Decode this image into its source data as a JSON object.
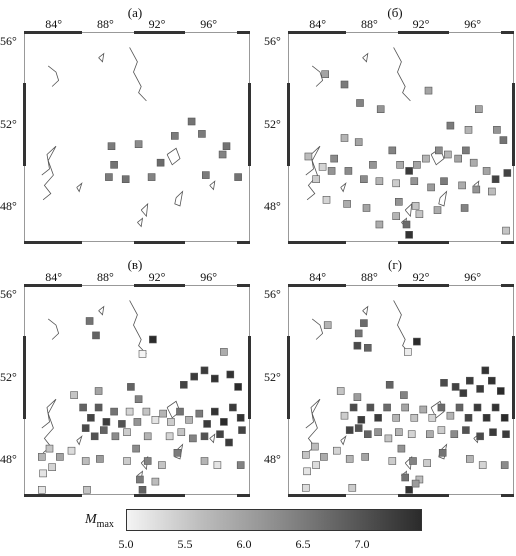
{
  "panels": [
    {
      "label": "(а)"
    },
    {
      "label": "(б)"
    },
    {
      "label": "(в)"
    },
    {
      "label": "(г)"
    }
  ],
  "lon_ticks": [
    "84°",
    "88°",
    "92°",
    "96°"
  ],
  "lat_ticks": [
    "56°",
    "52°",
    "48°"
  ],
  "colorbar": {
    "title": "M",
    "title_sub": "max",
    "ticks": [
      "5.0",
      "5.5",
      "6.0",
      "6.5",
      "7.0"
    ],
    "range": [
      5.0,
      7.5
    ]
  },
  "colors": {
    "low": "#f4f4f4",
    "high": "#2b2b2b",
    "outline": "#555555"
  },
  "map_data": {
    "lon_range": [
      81.5,
      99.0
    ],
    "lat_range": [
      46.3,
      56.5
    ],
    "cells": [
      [
        [
          88.2,
          51.0,
          6.5
        ],
        [
          88.4,
          50.1,
          6.6
        ],
        [
          90.3,
          51.1,
          6.3
        ],
        [
          92.0,
          50.2,
          6.7
        ],
        [
          93.1,
          51.5,
          6.5
        ],
        [
          94.4,
          52.2,
          6.6
        ],
        [
          95.2,
          51.6,
          6.5
        ],
        [
          97.1,
          51.0,
          6.6
        ],
        [
          96.8,
          50.6,
          6.4
        ],
        [
          88.0,
          49.5,
          6.5
        ],
        [
          89.3,
          49.4,
          6.6
        ],
        [
          91.3,
          49.5,
          6.4
        ],
        [
          95.5,
          49.6,
          6.5
        ],
        [
          98.0,
          49.5,
          6.6
        ]
      ],
      [
        [
          84.3,
          54.5,
          6.0
        ],
        [
          85.8,
          54.0,
          6.5
        ],
        [
          87.0,
          53.1,
          6.4
        ],
        [
          88.6,
          52.8,
          6.2
        ],
        [
          92.3,
          53.7,
          6.0
        ],
        [
          94.0,
          52.0,
          6.5
        ],
        [
          95.4,
          51.8,
          5.8
        ],
        [
          96.2,
          52.8,
          6.0
        ],
        [
          97.6,
          51.8,
          6.2
        ],
        [
          98.1,
          51.3,
          6.6
        ],
        [
          83.0,
          50.5,
          5.7
        ],
        [
          84.1,
          50.0,
          5.4
        ],
        [
          85.0,
          50.4,
          6.3
        ],
        [
          85.8,
          51.4,
          5.8
        ],
        [
          86.9,
          51.2,
          6.0
        ],
        [
          88.0,
          50.1,
          6.2
        ],
        [
          89.5,
          50.8,
          6.4
        ],
        [
          90.1,
          50.1,
          5.9
        ],
        [
          90.8,
          49.8,
          7.3
        ],
        [
          91.4,
          50.1,
          6.0
        ],
        [
          92.1,
          50.4,
          5.8
        ],
        [
          93.1,
          50.8,
          6.3
        ],
        [
          93.8,
          50.6,
          5.8
        ],
        [
          94.6,
          50.4,
          6.0
        ],
        [
          95.2,
          50.8,
          6.5
        ],
        [
          95.8,
          50.2,
          5.9
        ],
        [
          96.8,
          49.8,
          6.0
        ],
        [
          97.5,
          49.4,
          7.2
        ],
        [
          98.4,
          49.7,
          7.2
        ],
        [
          83.6,
          49.4,
          5.5
        ],
        [
          84.8,
          49.8,
          6.2
        ],
        [
          86.1,
          49.8,
          6.3
        ],
        [
          87.3,
          49.4,
          6.3
        ],
        [
          88.5,
          49.3,
          5.8
        ],
        [
          89.8,
          49.2,
          5.5
        ],
        [
          91.2,
          49.3,
          6.2
        ],
        [
          92.5,
          49.0,
          6.1
        ],
        [
          93.5,
          49.3,
          6.5
        ],
        [
          94.9,
          49.1,
          5.9
        ],
        [
          96.0,
          48.9,
          6.2
        ],
        [
          97.2,
          48.8,
          5.7
        ],
        [
          84.4,
          48.4,
          5.4
        ],
        [
          86.0,
          48.2,
          5.9
        ],
        [
          87.5,
          48.0,
          6.0
        ],
        [
          90.0,
          48.3,
          6.2
        ],
        [
          91.3,
          48.1,
          5.6
        ],
        [
          93.0,
          47.9,
          5.9
        ],
        [
          95.1,
          48.0,
          6.4
        ],
        [
          89.8,
          47.6,
          5.8
        ],
        [
          90.6,
          47.2,
          6.7
        ],
        [
          91.6,
          47.7,
          5.6
        ],
        [
          88.5,
          47.2,
          5.9
        ],
        [
          90.8,
          46.7,
          7.4
        ],
        [
          98.3,
          46.9,
          5.6
        ]
      ],
      [
        [
          86.5,
          54.8,
          6.6
        ],
        [
          87.0,
          54.1,
          6.8
        ],
        [
          90.6,
          53.2,
          5.0
        ],
        [
          91.4,
          53.9,
          7.5
        ],
        [
          96.9,
          53.3,
          5.9
        ],
        [
          85.3,
          51.2,
          5.6
        ],
        [
          87.2,
          51.4,
          6.0
        ],
        [
          89.7,
          51.6,
          6.8
        ],
        [
          90.3,
          51.0,
          6.4
        ],
        [
          94.6,
          52.1,
          7.3
        ],
        [
          95.4,
          52.4,
          7.3
        ],
        [
          96.2,
          52.0,
          7.4
        ],
        [
          97.4,
          52.2,
          7.4
        ],
        [
          98.0,
          51.6,
          7.5
        ],
        [
          93.8,
          51.7,
          7.2
        ],
        [
          86.0,
          50.6,
          6.8
        ],
        [
          86.6,
          50.1,
          7.2
        ],
        [
          87.2,
          50.6,
          6.9
        ],
        [
          87.8,
          49.9,
          7.3
        ],
        [
          88.4,
          50.4,
          6.6
        ],
        [
          89.0,
          49.8,
          7.0
        ],
        [
          89.6,
          50.4,
          5.4
        ],
        [
          90.2,
          49.9,
          6.2
        ],
        [
          90.9,
          50.4,
          5.6
        ],
        [
          91.6,
          50.0,
          5.2
        ],
        [
          92.2,
          50.3,
          5.8
        ],
        [
          92.8,
          49.9,
          5.5
        ],
        [
          93.5,
          50.4,
          6.6
        ],
        [
          94.2,
          50.0,
          5.8
        ],
        [
          95.0,
          50.3,
          6.5
        ],
        [
          95.6,
          49.8,
          7.3
        ],
        [
          96.2,
          50.4,
          7.4
        ],
        [
          96.9,
          49.9,
          7.5
        ],
        [
          97.6,
          50.6,
          7.3
        ],
        [
          98.2,
          50.1,
          7.4
        ],
        [
          98.3,
          49.5,
          7.2
        ],
        [
          86.2,
          49.6,
          7.1
        ],
        [
          86.9,
          49.2,
          7.0
        ],
        [
          87.6,
          49.5,
          6.8
        ],
        [
          88.5,
          49.2,
          6.3
        ],
        [
          89.4,
          49.4,
          5.5
        ],
        [
          91.0,
          49.2,
          5.8
        ],
        [
          92.7,
          49.2,
          5.4
        ],
        [
          93.6,
          49.4,
          5.6
        ],
        [
          94.5,
          49.1,
          6.4
        ],
        [
          95.4,
          49.2,
          7.0
        ],
        [
          96.6,
          49.3,
          7.2
        ],
        [
          97.3,
          48.9,
          7.3
        ],
        [
          82.8,
          48.2,
          5.8
        ],
        [
          83.4,
          48.6,
          5.6
        ],
        [
          84.2,
          48.2,
          6.0
        ],
        [
          85.1,
          48.5,
          5.3
        ],
        [
          86.2,
          48.0,
          5.7
        ],
        [
          87.3,
          48.1,
          6.1
        ],
        [
          89.4,
          48.0,
          5.5
        ],
        [
          90.1,
          48.6,
          6.3
        ],
        [
          91.0,
          48.0,
          6.4
        ],
        [
          92.1,
          47.8,
          5.6
        ],
        [
          93.3,
          48.4,
          6.5
        ],
        [
          95.4,
          48.0,
          5.8
        ],
        [
          96.4,
          47.8,
          5.2
        ],
        [
          82.9,
          47.4,
          5.2
        ],
        [
          83.6,
          47.7,
          5.4
        ],
        [
          90.4,
          47.1,
          6.5
        ],
        [
          91.6,
          47.0,
          5.7
        ],
        [
          98.2,
          47.8,
          6.4
        ],
        [
          82.8,
          46.6,
          5.2
        ],
        [
          86.3,
          46.6,
          5.6
        ],
        [
          90.6,
          46.6,
          6.8
        ]
      ],
      [
        [
          84.5,
          54.6,
          5.8
        ],
        [
          87.3,
          54.7,
          6.7
        ],
        [
          86.9,
          54.2,
          6.6
        ],
        [
          86.8,
          53.6,
          7.1
        ],
        [
          87.6,
          53.5,
          6.8
        ],
        [
          91.4,
          53.8,
          7.5
        ],
        [
          90.7,
          53.3,
          5.1
        ],
        [
          96.7,
          52.4,
          7.4
        ],
        [
          97.2,
          51.9,
          7.4
        ],
        [
          97.9,
          51.4,
          7.5
        ],
        [
          96.3,
          51.5,
          7.3
        ],
        [
          95.5,
          51.9,
          7.3
        ],
        [
          95.0,
          51.3,
          7.3
        ],
        [
          85.5,
          51.4,
          5.6
        ],
        [
          86.8,
          51.1,
          6.1
        ],
        [
          89.3,
          51.7,
          6.8
        ],
        [
          90.4,
          51.2,
          6.4
        ],
        [
          93.5,
          51.8,
          7.1
        ],
        [
          94.4,
          51.6,
          7.2
        ],
        [
          85.8,
          50.2,
          5.5
        ],
        [
          86.5,
          50.6,
          7.1
        ],
        [
          87.1,
          50.0,
          7.3
        ],
        [
          87.8,
          50.6,
          7.0
        ],
        [
          88.4,
          50.1,
          7.3
        ],
        [
          89.1,
          50.6,
          6.7
        ],
        [
          89.8,
          50.1,
          5.8
        ],
        [
          90.5,
          50.6,
          6.0
        ],
        [
          91.2,
          50.1,
          5.6
        ],
        [
          91.9,
          50.5,
          5.9
        ],
        [
          92.6,
          50.1,
          5.4
        ],
        [
          93.3,
          50.6,
          6.7
        ],
        [
          94.0,
          50.2,
          5.8
        ],
        [
          94.7,
          50.6,
          6.8
        ],
        [
          95.4,
          50.1,
          7.2
        ],
        [
          96.1,
          50.6,
          7.3
        ],
        [
          96.8,
          50.1,
          7.4
        ],
        [
          97.5,
          50.6,
          7.4
        ],
        [
          98.2,
          50.1,
          7.5
        ],
        [
          86.2,
          49.5,
          7.2
        ],
        [
          86.9,
          49.6,
          7.0
        ],
        [
          87.6,
          49.3,
          6.8
        ],
        [
          88.4,
          49.4,
          6.2
        ],
        [
          89.2,
          49.1,
          5.6
        ],
        [
          90.0,
          49.4,
          5.8
        ],
        [
          91.0,
          49.3,
          5.4
        ],
        [
          92.4,
          49.3,
          5.9
        ],
        [
          93.3,
          49.5,
          5.5
        ],
        [
          94.3,
          49.3,
          6.3
        ],
        [
          95.2,
          49.5,
          7.0
        ],
        [
          96.3,
          49.2,
          7.1
        ],
        [
          97.3,
          49.4,
          7.3
        ],
        [
          98.3,
          49.3,
          7.3
        ],
        [
          82.8,
          48.3,
          5.6
        ],
        [
          83.5,
          48.7,
          5.7
        ],
        [
          84.2,
          48.2,
          5.9
        ],
        [
          85.2,
          48.5,
          5.4
        ],
        [
          86.2,
          48.1,
          5.8
        ],
        [
          87.4,
          48.2,
          6.0
        ],
        [
          89.5,
          48.0,
          5.5
        ],
        [
          90.2,
          48.6,
          6.2
        ],
        [
          91.1,
          48.0,
          6.4
        ],
        [
          92.2,
          47.9,
          5.5
        ],
        [
          93.4,
          48.4,
          6.6
        ],
        [
          95.5,
          48.1,
          5.8
        ],
        [
          96.5,
          47.8,
          5.4
        ],
        [
          82.9,
          47.5,
          5.2
        ],
        [
          83.6,
          47.8,
          5.3
        ],
        [
          90.5,
          47.2,
          6.6
        ],
        [
          91.6,
          47.1,
          5.7
        ],
        [
          98.2,
          47.8,
          6.3
        ],
        [
          82.8,
          46.7,
          5.3
        ],
        [
          86.4,
          46.7,
          5.5
        ],
        [
          90.8,
          46.6,
          7.4
        ],
        [
          91.3,
          46.9,
          6.1
        ]
      ]
    ]
  }
}
